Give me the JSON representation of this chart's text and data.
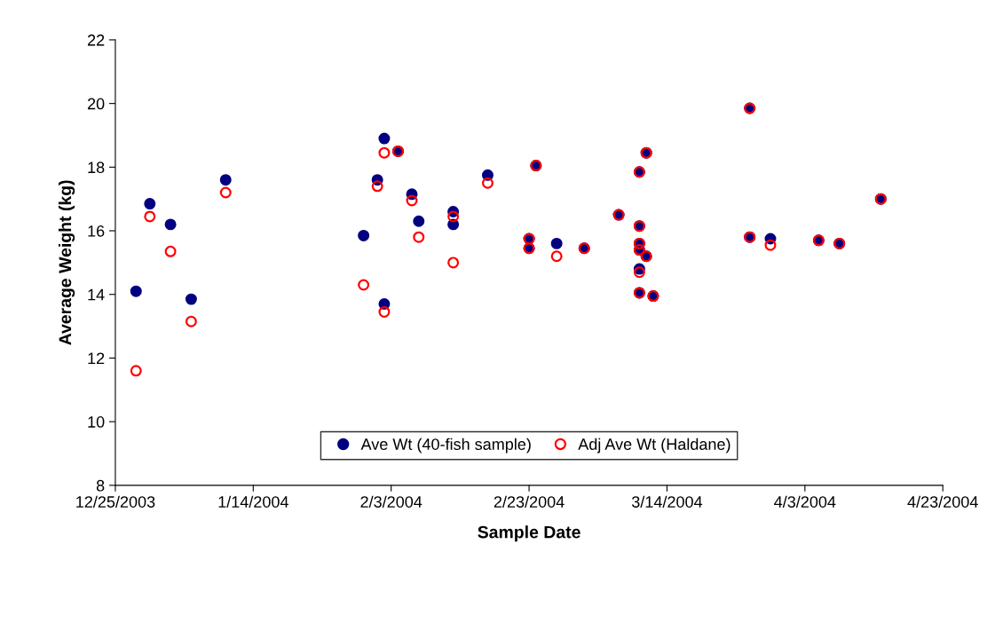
{
  "chart_data": {
    "type": "scatter",
    "xlabel": "Sample Date",
    "ylabel": "Average Weight (kg)",
    "x": [
      "2003-12-28",
      "2003-12-30",
      "2004-01-02",
      "2004-01-05",
      "2004-01-10",
      "2004-01-30",
      "2004-02-01",
      "2004-02-02",
      "2004-02-02",
      "2004-02-04",
      "2004-02-06",
      "2004-02-07",
      "2004-02-12",
      "2004-02-12",
      "2004-02-17",
      "2004-02-23",
      "2004-02-23",
      "2004-02-24",
      "2004-02-27",
      "2004-03-02",
      "2004-03-07",
      "2004-03-10",
      "2004-03-10",
      "2004-03-10",
      "2004-03-10",
      "2004-03-10",
      "2004-03-10",
      "2004-03-11",
      "2004-03-11",
      "2004-03-12",
      "2004-03-26",
      "2004-03-26",
      "2004-03-29",
      "2004-04-05",
      "2004-04-08",
      "2004-04-14"
    ],
    "series": [
      {
        "name": "Ave Wt (40-fish sample)",
        "color": "#000080",
        "marker": "circle",
        "values": [
          14.1,
          16.85,
          16.2,
          13.85,
          17.6,
          15.85,
          17.6,
          18.9,
          13.7,
          18.5,
          17.15,
          16.3,
          16.6,
          16.2,
          17.75,
          15.75,
          15.45,
          18.05,
          15.6,
          15.45,
          16.5,
          17.85,
          16.15,
          15.6,
          15.4,
          14.8,
          14.05,
          18.45,
          15.2,
          13.95,
          19.85,
          15.8,
          15.75,
          15.7,
          15.6,
          17.0
        ]
      },
      {
        "name": "Adj Ave Wt (Haldane)",
        "color": "#ff0000",
        "marker": "circle",
        "values": [
          11.6,
          16.45,
          15.35,
          13.15,
          17.2,
          14.3,
          17.4,
          18.45,
          13.45,
          18.5,
          16.95,
          15.8,
          16.45,
          15.0,
          17.5,
          15.75,
          15.45,
          18.05,
          15.2,
          15.45,
          16.5,
          17.85,
          16.15,
          15.6,
          15.4,
          14.7,
          14.05,
          18.45,
          15.2,
          13.95,
          19.85,
          15.8,
          15.55,
          15.7,
          15.6,
          17.0
        ]
      }
    ],
    "xlim": [
      "2003-12-25",
      "2004-04-23"
    ],
    "xticks": [
      {
        "value": "2003-12-25",
        "label": "12/25/2003"
      },
      {
        "value": "2004-01-14",
        "label": "1/14/2004"
      },
      {
        "value": "2004-02-03",
        "label": "2/3/2004"
      },
      {
        "value": "2004-02-23",
        "label": "2/23/2004"
      },
      {
        "value": "2004-03-14",
        "label": "3/14/2004"
      },
      {
        "value": "2004-04-03",
        "label": "4/3/2004"
      },
      {
        "value": "2004-04-23",
        "label": "4/23/2004"
      }
    ],
    "ylim": [
      8,
      22
    ],
    "yticks": [
      8,
      10,
      12,
      14,
      16,
      18,
      20,
      22
    ],
    "grid": false,
    "legend": "bottom"
  }
}
